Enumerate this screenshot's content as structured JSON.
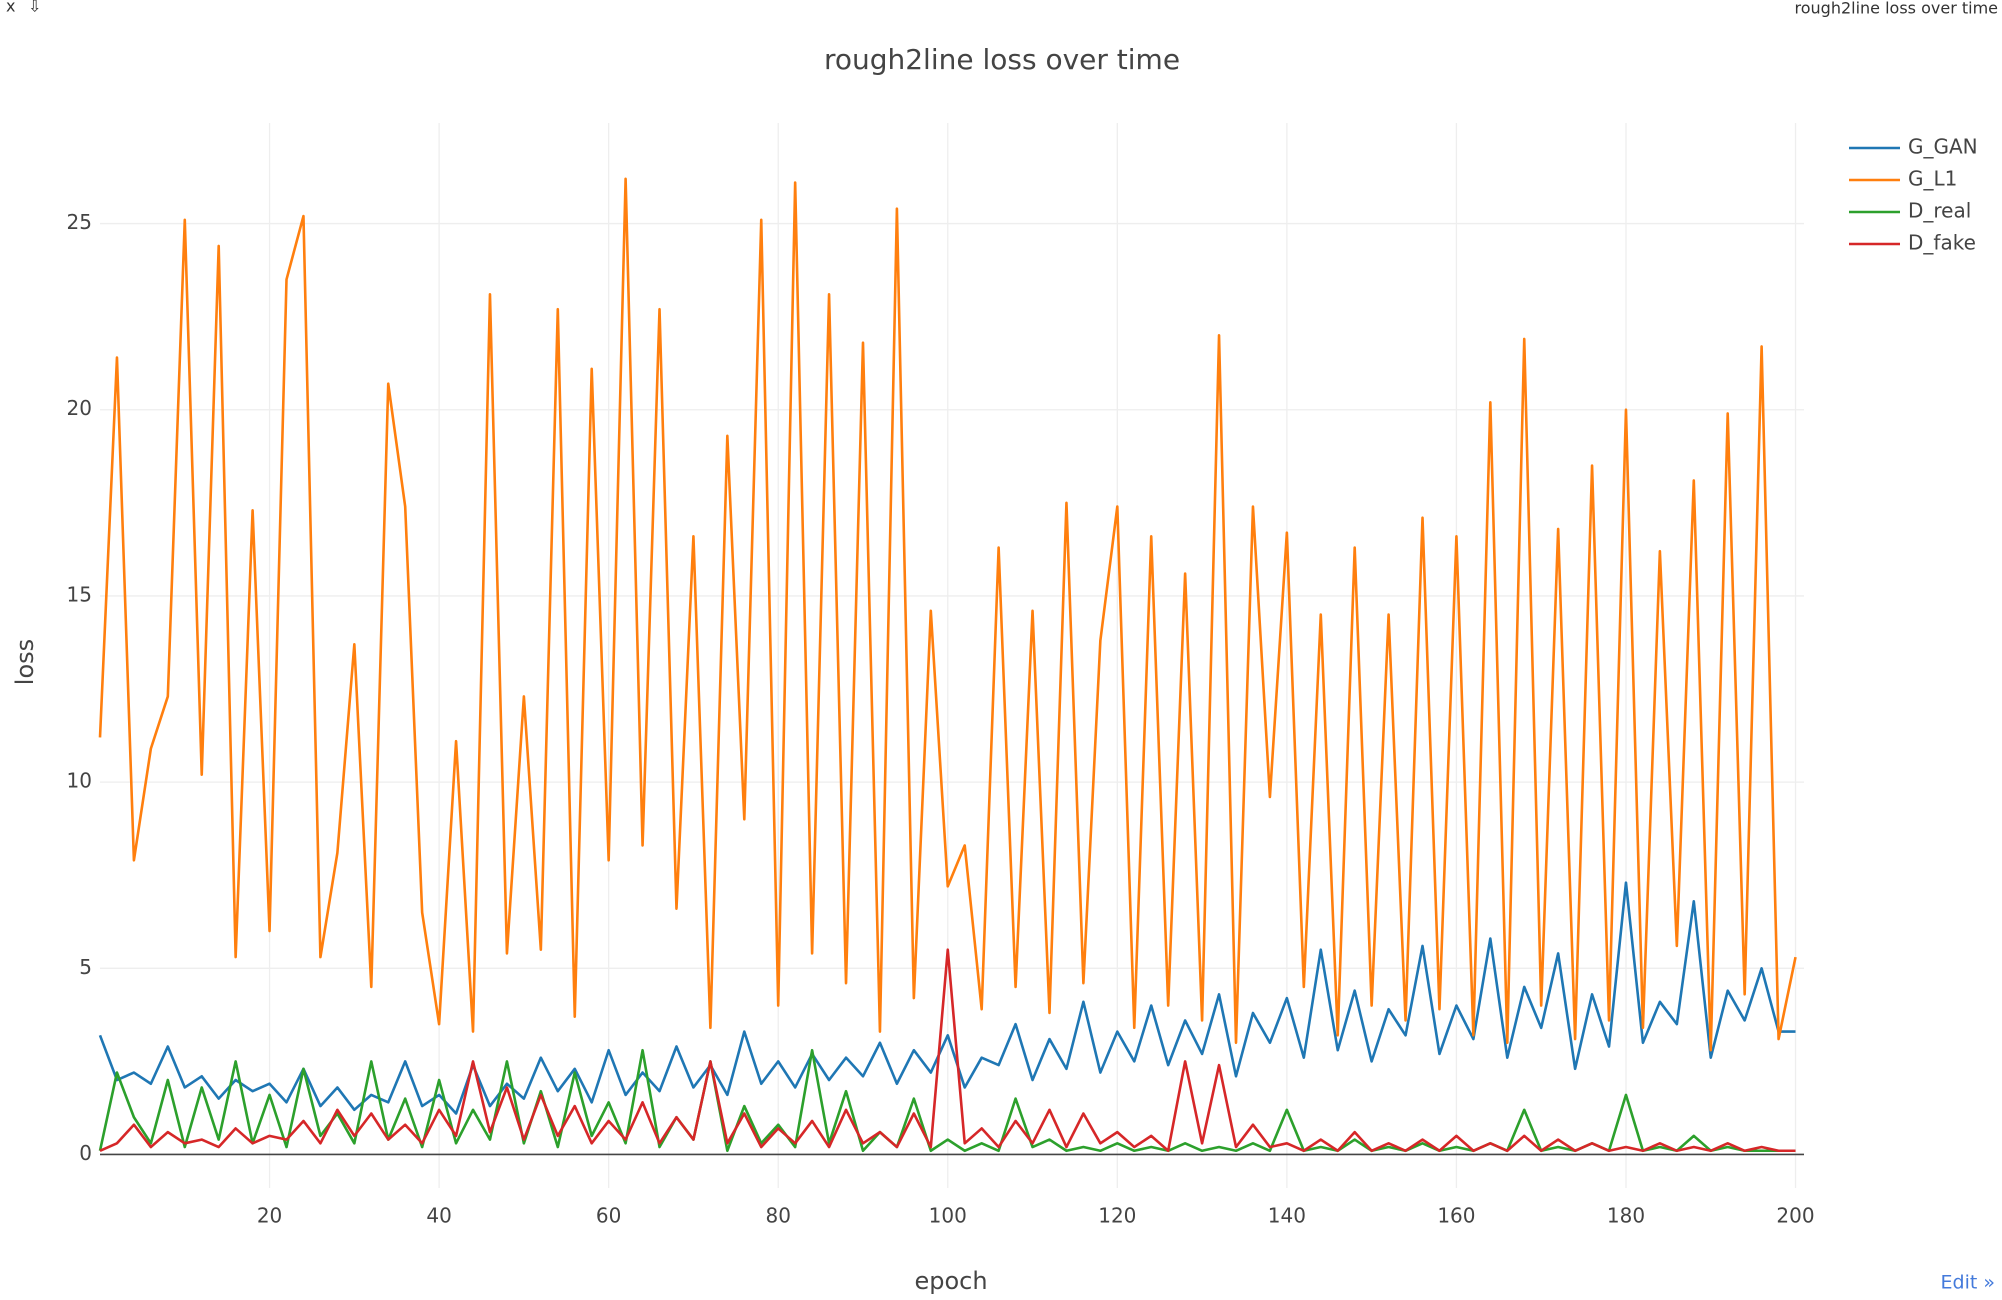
{
  "window": {
    "close": "x",
    "download": "⇩",
    "title": "rough2line loss over time",
    "edit_link": "Edit »"
  },
  "chart_data": {
    "type": "line",
    "title": "rough2line loss over time",
    "x_label": "epoch",
    "y_label": "loss",
    "xlim": [
      0,
      201
    ],
    "ylim": [
      -0.9,
      27.7
    ],
    "xticks": [
      20,
      40,
      60,
      80,
      100,
      120,
      140,
      160,
      180,
      200
    ],
    "yticks": [
      0,
      5,
      10,
      15,
      20,
      25
    ],
    "grid": true,
    "legend": "right",
    "x": [
      0,
      2,
      4,
      6,
      8,
      10,
      12,
      14,
      16,
      18,
      20,
      22,
      24,
      26,
      28,
      30,
      32,
      34,
      36,
      38,
      40,
      42,
      44,
      46,
      48,
      50,
      52,
      54,
      56,
      58,
      60,
      62,
      64,
      66,
      68,
      70,
      72,
      74,
      76,
      78,
      80,
      82,
      84,
      86,
      88,
      90,
      92,
      94,
      96,
      98,
      100,
      102,
      104,
      106,
      108,
      110,
      112,
      114,
      116,
      118,
      120,
      122,
      124,
      126,
      128,
      130,
      132,
      134,
      136,
      138,
      140,
      142,
      144,
      146,
      148,
      150,
      152,
      154,
      156,
      158,
      160,
      162,
      164,
      166,
      168,
      170,
      172,
      174,
      176,
      178,
      180,
      182,
      184,
      186,
      188,
      190,
      192,
      194,
      196,
      198,
      200
    ],
    "series": [
      {
        "name": "G_GAN",
        "color": "#1f77b4",
        "values": [
          3.2,
          2.0,
          2.2,
          1.9,
          2.9,
          1.8,
          2.1,
          1.5,
          2.0,
          1.7,
          1.9,
          1.4,
          2.3,
          1.3,
          1.8,
          1.2,
          1.6,
          1.4,
          2.5,
          1.3,
          1.6,
          1.1,
          2.4,
          1.3,
          1.9,
          1.5,
          2.6,
          1.7,
          2.3,
          1.4,
          2.8,
          1.6,
          2.2,
          1.7,
          2.9,
          1.8,
          2.4,
          1.6,
          3.3,
          1.9,
          2.5,
          1.8,
          2.7,
          2.0,
          2.6,
          2.1,
          3.0,
          1.9,
          2.8,
          2.2,
          3.2,
          1.8,
          2.6,
          2.4,
          3.5,
          2.0,
          3.1,
          2.3,
          4.1,
          2.2,
          3.3,
          2.5,
          4.0,
          2.4,
          3.6,
          2.7,
          4.3,
          2.1,
          3.8,
          3.0,
          4.2,
          2.6,
          5.5,
          2.8,
          4.4,
          2.5,
          3.9,
          3.2,
          5.6,
          2.7,
          4.0,
          3.1,
          5.8,
          2.6,
          4.5,
          3.4,
          5.4,
          2.3,
          4.3,
          2.9,
          7.3,
          3.0,
          4.1,
          3.5,
          6.8,
          2.6,
          4.4,
          3.6,
          5.0,
          3.3,
          3.3
        ]
      },
      {
        "name": "G_L1",
        "color": "#ff7f0e",
        "values": [
          11.2,
          21.4,
          7.9,
          10.9,
          12.3,
          25.1,
          10.2,
          24.4,
          5.3,
          17.3,
          6.0,
          23.5,
          25.2,
          5.3,
          8.1,
          13.7,
          4.5,
          20.7,
          17.4,
          6.5,
          3.5,
          11.1,
          3.3,
          23.1,
          5.4,
          12.3,
          5.5,
          22.7,
          3.7,
          21.1,
          7.9,
          26.2,
          8.3,
          22.7,
          6.6,
          16.6,
          3.4,
          19.3,
          9.0,
          25.1,
          4.0,
          26.1,
          5.4,
          23.1,
          4.6,
          21.8,
          3.3,
          25.4,
          4.2,
          14.6,
          7.2,
          8.3,
          3.9,
          16.3,
          4.5,
          14.6,
          3.8,
          17.5,
          4.6,
          13.8,
          17.4,
          3.4,
          16.6,
          4.0,
          15.6,
          3.6,
          22.0,
          3.0,
          17.4,
          9.6,
          16.7,
          4.5,
          14.5,
          3.2,
          16.3,
          4.0,
          14.5,
          3.6,
          17.1,
          3.9,
          16.6,
          3.2,
          20.2,
          3.0,
          21.9,
          4.0,
          16.8,
          3.1,
          18.5,
          3.6,
          20.0,
          3.4,
          16.2,
          5.6,
          18.1,
          2.8,
          19.9,
          4.3,
          21.7,
          3.1,
          5.3
        ]
      },
      {
        "name": "D_real",
        "color": "#2ca02c",
        "values": [
          0.1,
          2.2,
          1.0,
          0.3,
          2.0,
          0.2,
          1.8,
          0.4,
          2.5,
          0.3,
          1.6,
          0.2,
          2.3,
          0.5,
          1.1,
          0.3,
          2.5,
          0.4,
          1.5,
          0.2,
          2.0,
          0.3,
          1.2,
          0.4,
          2.5,
          0.3,
          1.7,
          0.2,
          2.2,
          0.5,
          1.4,
          0.3,
          2.8,
          0.2,
          1.0,
          0.4,
          2.5,
          0.1,
          1.3,
          0.3,
          0.8,
          0.2,
          2.8,
          0.3,
          1.7,
          0.1,
          0.6,
          0.2,
          1.5,
          0.1,
          0.4,
          0.1,
          0.3,
          0.1,
          1.5,
          0.2,
          0.4,
          0.1,
          0.2,
          0.1,
          0.3,
          0.1,
          0.2,
          0.1,
          0.3,
          0.1,
          0.2,
          0.1,
          0.3,
          0.1,
          1.2,
          0.1,
          0.2,
          0.1,
          0.4,
          0.1,
          0.2,
          0.1,
          0.3,
          0.1,
          0.2,
          0.1,
          0.3,
          0.1,
          1.2,
          0.1,
          0.2,
          0.1,
          0.3,
          0.1,
          1.6,
          0.1,
          0.2,
          0.1,
          0.5,
          0.1,
          0.2,
          0.1,
          0.1,
          0.1,
          0.1
        ]
      },
      {
        "name": "D_fake",
        "color": "#d62728",
        "values": [
          0.1,
          0.3,
          0.8,
          0.2,
          0.6,
          0.3,
          0.4,
          0.2,
          0.7,
          0.3,
          0.5,
          0.4,
          0.9,
          0.3,
          1.2,
          0.5,
          1.1,
          0.4,
          0.8,
          0.3,
          1.2,
          0.5,
          2.5,
          0.6,
          1.8,
          0.4,
          1.6,
          0.5,
          1.3,
          0.3,
          0.9,
          0.4,
          1.4,
          0.3,
          1.0,
          0.4,
          2.5,
          0.3,
          1.1,
          0.2,
          0.7,
          0.3,
          0.9,
          0.2,
          1.2,
          0.3,
          0.6,
          0.2,
          1.1,
          0.2,
          5.5,
          0.3,
          0.7,
          0.2,
          0.9,
          0.3,
          1.2,
          0.2,
          1.1,
          0.3,
          0.6,
          0.2,
          0.5,
          0.1,
          2.5,
          0.3,
          2.4,
          0.2,
          0.8,
          0.2,
          0.3,
          0.1,
          0.4,
          0.1,
          0.6,
          0.1,
          0.3,
          0.1,
          0.4,
          0.1,
          0.5,
          0.1,
          0.3,
          0.1,
          0.5,
          0.1,
          0.4,
          0.1,
          0.3,
          0.1,
          0.2,
          0.1,
          0.3,
          0.1,
          0.2,
          0.1,
          0.3,
          0.1,
          0.2,
          0.1,
          0.1
        ]
      }
    ]
  }
}
